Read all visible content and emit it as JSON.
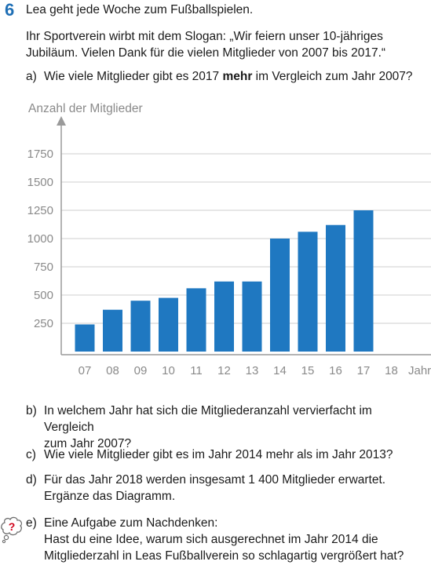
{
  "task": {
    "number": "6",
    "title": "Lea geht jede Woche zum Fußballspielen.",
    "intro_line1": "Ihr Sportverein wirbt mit dem Slogan: „Wir feiern unser 10-jähriges",
    "intro_line2": "Jubiläum. Vielen Dank für die vielen Mitglieder von 2007 bis 2017.“"
  },
  "questions": {
    "a": {
      "label": "a)",
      "pre": "Wie viele Mitglieder gibt es 2017 ",
      "bold": "mehr",
      "post": " im Vergleich zum Jahr 2007?"
    },
    "b": {
      "label": "b)",
      "line1": "In welchem Jahr hat sich die Mitgliederanzahl vervierfacht im Vergleich",
      "line2": "zum Jahr 2007?"
    },
    "c": {
      "label": "c)",
      "line1": "Wie viele Mitglieder gibt es im Jahr 2014 mehr als im Jahr 2013?"
    },
    "d": {
      "label": "d)",
      "line1": "Für das Jahr 2018 werden insgesamt 1 400 Mitglieder erwartet.",
      "line2": "Ergänze das Diagramm."
    },
    "e": {
      "label": "e)",
      "line1": "Eine Aufgabe zum Nachdenken:",
      "line2": "Hast du eine Idee, warum sich ausgerechnet im Jahr 2014 die",
      "line3": "Mitgliederzahl in Leas Fußballverein so schlagartig vergrößert hat?"
    }
  },
  "icons": {
    "thought": "thinking-question-icon"
  },
  "chart_data": {
    "type": "bar",
    "ylabel": "Anzahl der Mitglieder",
    "xlabel": "Jahr",
    "categories": [
      "07",
      "08",
      "09",
      "10",
      "11",
      "12",
      "13",
      "14",
      "15",
      "16",
      "17",
      "18"
    ],
    "values": [
      240,
      370,
      450,
      475,
      560,
      620,
      620,
      1000,
      1060,
      1120,
      1250,
      null
    ],
    "yticks": [
      250,
      500,
      750,
      1000,
      1250,
      1500,
      1750
    ],
    "ylim": [
      0,
      1900
    ],
    "bar_color": "#1f78c1",
    "grid": true
  }
}
